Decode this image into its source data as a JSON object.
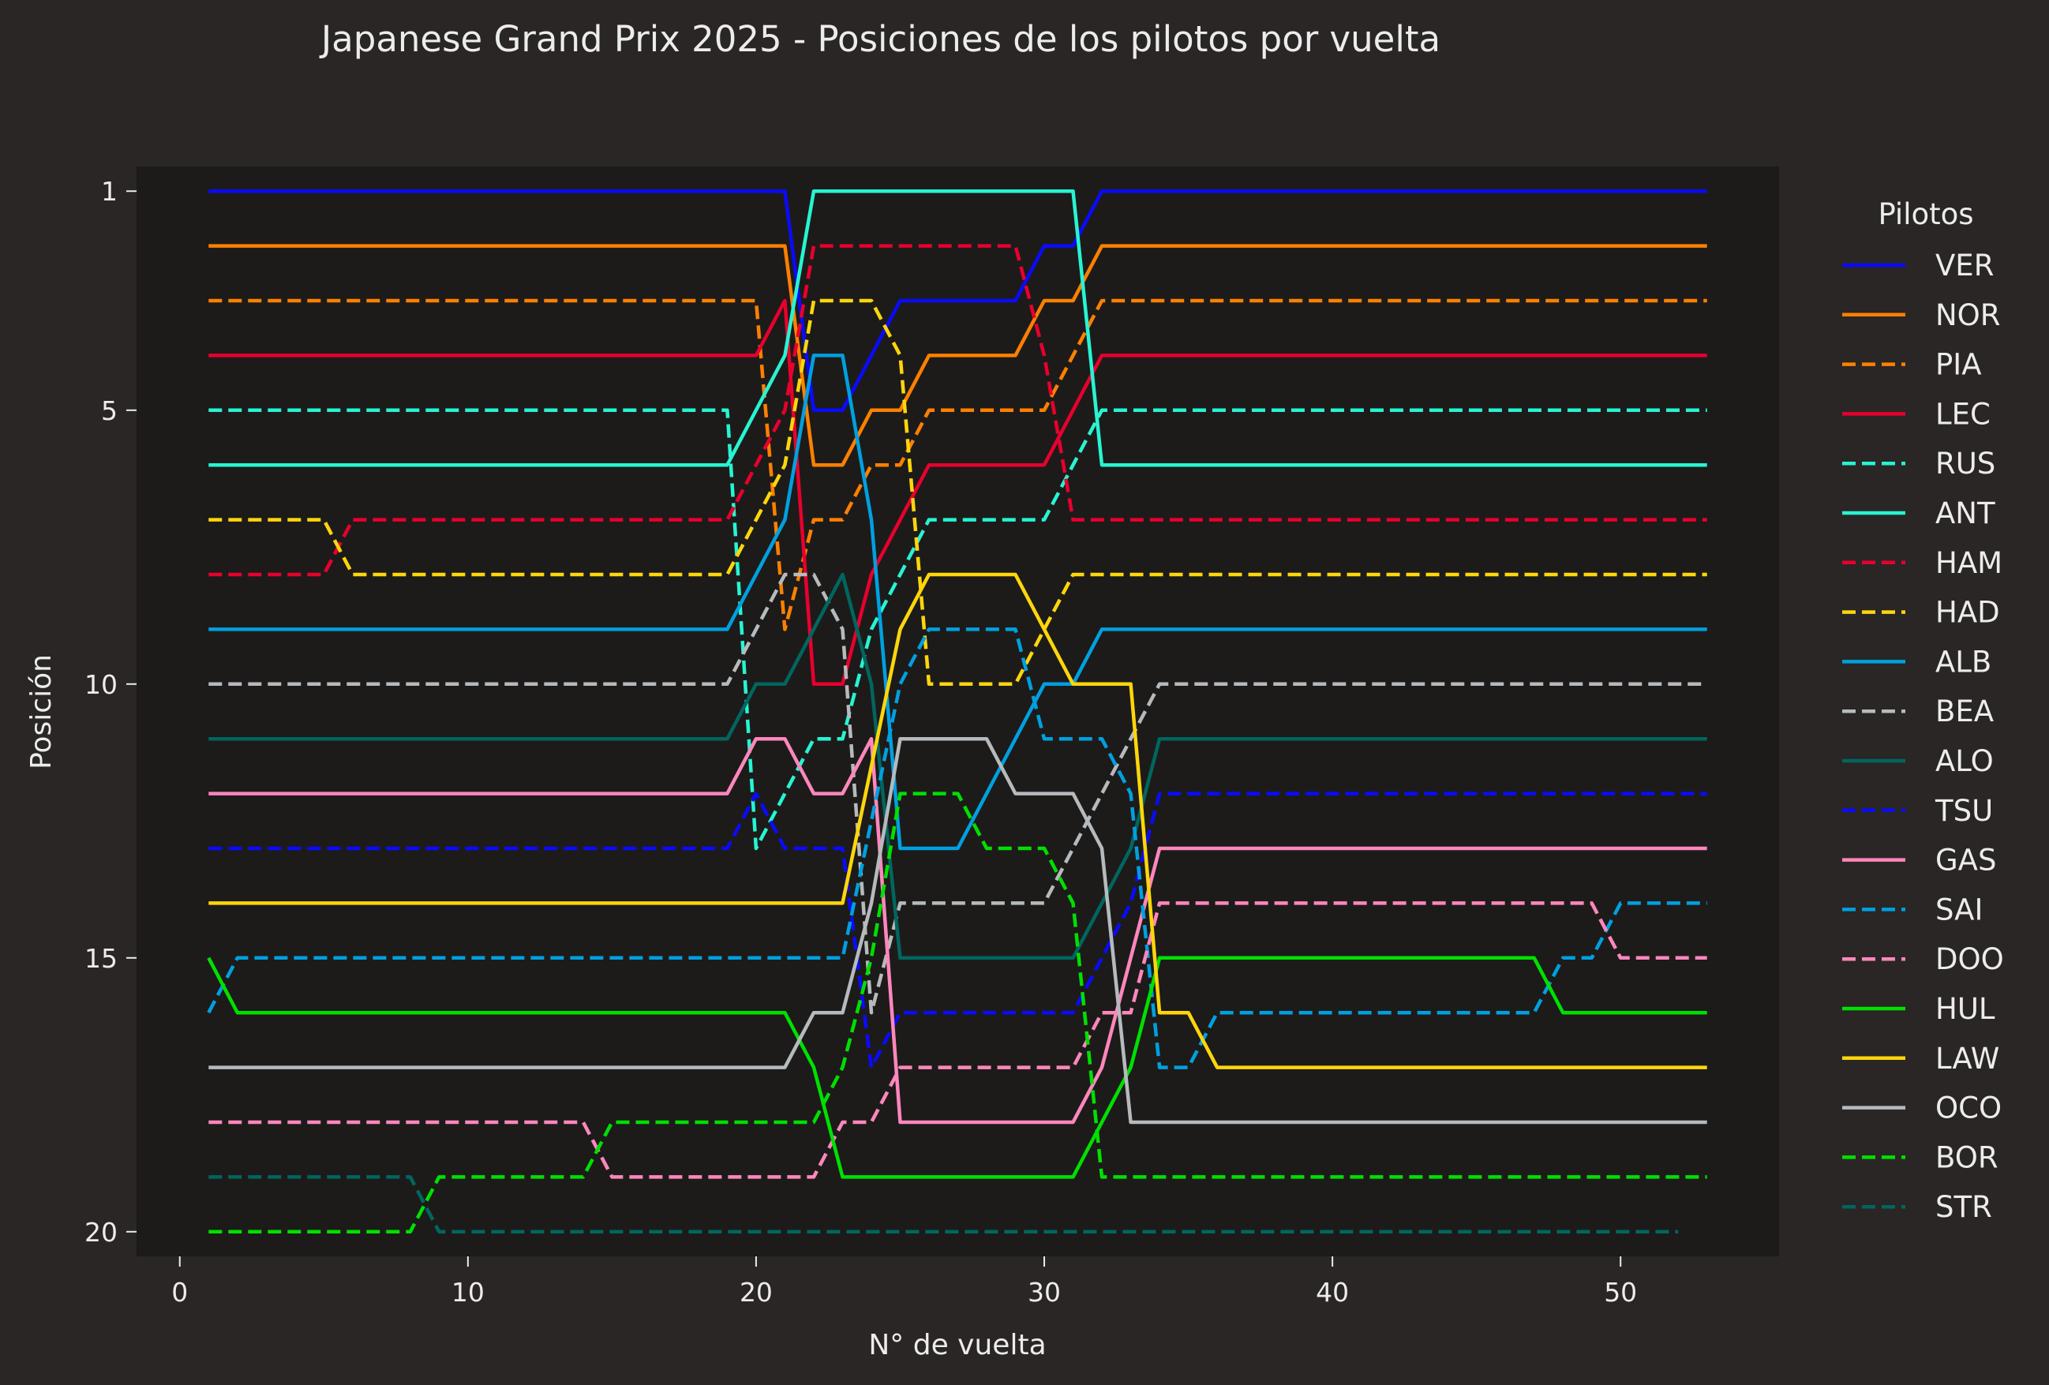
{
  "chart_data": {
    "type": "line",
    "title": "Japanese Grand Prix 2025 - Posiciones de los pilotos por vuelta",
    "xlabel": "N° de vuelta",
    "ylabel": "Posición",
    "xlim": [
      -1.5,
      55.5
    ],
    "ylim": [
      20.45,
      0.55
    ],
    "x_ticks": [
      0,
      10,
      20,
      30,
      40,
      50
    ],
    "y_ticks": [
      1,
      5,
      10,
      15,
      20
    ],
    "y_inverted": true,
    "grid": false,
    "legend": {
      "title": "Pilotos",
      "placement": "outside-right"
    },
    "series": [
      {
        "name": "VER",
        "color": "#0a0aff",
        "dash": "solid",
        "points": [
          [
            1,
            1
          ],
          [
            21,
            1
          ],
          [
            22,
            5
          ],
          [
            23,
            5
          ],
          [
            25,
            3
          ],
          [
            29,
            3
          ],
          [
            30,
            2
          ],
          [
            31,
            2
          ],
          [
            32,
            1
          ],
          [
            53,
            1
          ]
        ]
      },
      {
        "name": "NOR",
        "color": "#ff8000",
        "dash": "solid",
        "points": [
          [
            1,
            2
          ],
          [
            21,
            2
          ],
          [
            22,
            6
          ],
          [
            23,
            6
          ],
          [
            24,
            5
          ],
          [
            25,
            5
          ],
          [
            26,
            4
          ],
          [
            29,
            4
          ],
          [
            30,
            3
          ],
          [
            31,
            3
          ],
          [
            32,
            2
          ],
          [
            53,
            2
          ]
        ]
      },
      {
        "name": "PIA",
        "color": "#ff8000",
        "dash": "dashed",
        "points": [
          [
            1,
            3
          ],
          [
            20,
            3
          ],
          [
            21,
            9
          ],
          [
            22,
            7
          ],
          [
            23,
            7
          ],
          [
            24,
            6
          ],
          [
            25,
            6
          ],
          [
            26,
            5
          ],
          [
            30,
            5
          ],
          [
            31,
            4
          ],
          [
            32,
            3
          ],
          [
            53,
            3
          ]
        ]
      },
      {
        "name": "LEC",
        "color": "#e8002d",
        "dash": "solid",
        "points": [
          [
            1,
            4
          ],
          [
            20,
            4
          ],
          [
            21,
            3
          ],
          [
            22,
            10
          ],
          [
            23,
            10
          ],
          [
            24,
            8
          ],
          [
            25,
            7
          ],
          [
            26,
            6
          ],
          [
            30,
            6
          ],
          [
            31,
            5
          ],
          [
            32,
            4
          ],
          [
            53,
            4
          ]
        ]
      },
      {
        "name": "RUS",
        "color": "#27f4d2",
        "dash": "dashed",
        "points": [
          [
            1,
            5
          ],
          [
            19,
            5
          ],
          [
            20,
            13
          ],
          [
            21,
            12
          ],
          [
            22,
            11
          ],
          [
            23,
            11
          ],
          [
            24,
            9
          ],
          [
            25,
            8
          ],
          [
            26,
            7
          ],
          [
            30,
            7
          ],
          [
            31,
            6
          ],
          [
            32,
            5
          ],
          [
            53,
            5
          ]
        ]
      },
      {
        "name": "ANT",
        "color": "#27f4d2",
        "dash": "solid",
        "points": [
          [
            1,
            6
          ],
          [
            19,
            6
          ],
          [
            21,
            4
          ],
          [
            22,
            1
          ],
          [
            31,
            1
          ],
          [
            32,
            6
          ],
          [
            53,
            6
          ]
        ]
      },
      {
        "name": "HAM",
        "color": "#e8002d",
        "dash": "dashed",
        "points": [
          [
            1,
            8
          ],
          [
            5,
            8
          ],
          [
            6,
            7
          ],
          [
            19,
            7
          ],
          [
            21,
            5
          ],
          [
            22,
            2
          ],
          [
            29,
            2
          ],
          [
            30,
            4
          ],
          [
            31,
            7
          ],
          [
            53,
            7
          ]
        ]
      },
      {
        "name": "HAD",
        "color": "#ffd60a",
        "dash": "dashed",
        "points": [
          [
            1,
            7
          ],
          [
            5,
            7
          ],
          [
            6,
            8
          ],
          [
            19,
            8
          ],
          [
            21,
            6
          ],
          [
            22,
            3
          ],
          [
            24,
            3
          ],
          [
            25,
            4
          ],
          [
            26,
            10
          ],
          [
            29,
            10
          ],
          [
            30,
            9
          ],
          [
            31,
            8
          ],
          [
            53,
            8
          ]
        ]
      },
      {
        "name": "ALB",
        "color": "#00a0e0",
        "dash": "solid",
        "points": [
          [
            1,
            9
          ],
          [
            19,
            9
          ],
          [
            21,
            7
          ],
          [
            22,
            4
          ],
          [
            23,
            4
          ],
          [
            24,
            7
          ],
          [
            25,
            13
          ],
          [
            27,
            13
          ],
          [
            30,
            10
          ],
          [
            31,
            10
          ],
          [
            32,
            9
          ],
          [
            53,
            9
          ]
        ]
      },
      {
        "name": "BEA",
        "color": "#b6babd",
        "dash": "dashed",
        "points": [
          [
            1,
            10
          ],
          [
            19,
            10
          ],
          [
            21,
            8
          ],
          [
            22,
            8
          ],
          [
            23,
            9
          ],
          [
            24,
            16
          ],
          [
            25,
            14
          ],
          [
            30,
            14
          ],
          [
            34,
            10
          ],
          [
            53,
            10
          ]
        ]
      },
      {
        "name": "ALO",
        "color": "#00665f",
        "dash": "solid",
        "points": [
          [
            1,
            11
          ],
          [
            19,
            11
          ],
          [
            20,
            10
          ],
          [
            21,
            10
          ],
          [
            23,
            8
          ],
          [
            24,
            10
          ],
          [
            25,
            15
          ],
          [
            31,
            15
          ],
          [
            33,
            13
          ],
          [
            34,
            11
          ],
          [
            53,
            11
          ]
        ]
      },
      {
        "name": "TSU",
        "color": "#0a0aff",
        "dash": "dashed",
        "points": [
          [
            1,
            13
          ],
          [
            19,
            13
          ],
          [
            20,
            12
          ],
          [
            21,
            13
          ],
          [
            23,
            13
          ],
          [
            24,
            17
          ],
          [
            25,
            16
          ],
          [
            31,
            16
          ],
          [
            33,
            14
          ],
          [
            34,
            12
          ],
          [
            53,
            12
          ]
        ]
      },
      {
        "name": "GAS",
        "color": "#ff87bc",
        "dash": "solid",
        "points": [
          [
            1,
            12
          ],
          [
            19,
            12
          ],
          [
            20,
            11
          ],
          [
            21,
            11
          ],
          [
            22,
            12
          ],
          [
            23,
            12
          ],
          [
            24,
            11
          ],
          [
            25,
            18
          ],
          [
            31,
            18
          ],
          [
            32,
            17
          ],
          [
            34,
            13
          ],
          [
            53,
            13
          ]
        ]
      },
      {
        "name": "SAI",
        "color": "#00a0e0",
        "dash": "dashed",
        "points": [
          [
            1,
            16
          ],
          [
            2,
            15
          ],
          [
            23,
            15
          ],
          [
            25,
            10
          ],
          [
            26,
            9
          ],
          [
            29,
            9
          ],
          [
            30,
            11
          ],
          [
            32,
            11
          ],
          [
            33,
            12
          ],
          [
            34,
            17
          ],
          [
            35,
            17
          ],
          [
            36,
            16
          ],
          [
            47,
            16
          ],
          [
            48,
            15
          ],
          [
            49,
            15
          ],
          [
            50,
            14
          ],
          [
            53,
            14
          ]
        ]
      },
      {
        "name": "DOO",
        "color": "#ff87bc",
        "dash": "dashed",
        "points": [
          [
            1,
            18
          ],
          [
            14,
            18
          ],
          [
            15,
            19
          ],
          [
            22,
            19
          ],
          [
            23,
            18
          ],
          [
            24,
            18
          ],
          [
            25,
            17
          ],
          [
            31,
            17
          ],
          [
            32,
            16
          ],
          [
            33,
            16
          ],
          [
            34,
            14
          ],
          [
            49,
            14
          ],
          [
            50,
            15
          ],
          [
            53,
            15
          ]
        ]
      },
      {
        "name": "HUL",
        "color": "#00e000",
        "dash": "solid",
        "points": [
          [
            1,
            15
          ],
          [
            2,
            16
          ],
          [
            21,
            16
          ],
          [
            22,
            17
          ],
          [
            23,
            19
          ],
          [
            31,
            19
          ],
          [
            33,
            17
          ],
          [
            34,
            15
          ],
          [
            47,
            15
          ],
          [
            48,
            16
          ],
          [
            53,
            16
          ]
        ]
      },
      {
        "name": "LAW",
        "color": "#ffd60a",
        "dash": "solid",
        "points": [
          [
            1,
            14
          ],
          [
            23,
            14
          ],
          [
            25,
            9
          ],
          [
            26,
            8
          ],
          [
            29,
            8
          ],
          [
            31,
            10
          ],
          [
            32,
            10
          ],
          [
            33,
            10
          ],
          [
            34,
            16
          ],
          [
            35,
            16
          ],
          [
            36,
            17
          ],
          [
            53,
            17
          ]
        ]
      },
      {
        "name": "OCO",
        "color": "#b6babd",
        "dash": "solid",
        "points": [
          [
            1,
            17
          ],
          [
            21,
            17
          ],
          [
            22,
            16
          ],
          [
            23,
            16
          ],
          [
            24,
            14
          ],
          [
            25,
            11
          ],
          [
            28,
            11
          ],
          [
            29,
            12
          ],
          [
            31,
            12
          ],
          [
            32,
            13
          ],
          [
            33,
            18
          ],
          [
            53,
            18
          ]
        ]
      },
      {
        "name": "BOR",
        "color": "#00e000",
        "dash": "dashed",
        "points": [
          [
            1,
            20
          ],
          [
            8,
            20
          ],
          [
            9,
            19
          ],
          [
            14,
            19
          ],
          [
            15,
            18
          ],
          [
            21,
            18
          ],
          [
            22,
            18
          ],
          [
            23,
            17
          ],
          [
            24,
            15
          ],
          [
            25,
            12
          ],
          [
            27,
            12
          ],
          [
            28,
            13
          ],
          [
            30,
            13
          ],
          [
            31,
            14
          ],
          [
            32,
            19
          ],
          [
            53,
            19
          ]
        ]
      },
      {
        "name": "STR",
        "color": "#00665f",
        "dash": "dashed",
        "points": [
          [
            1,
            19
          ],
          [
            8,
            19
          ],
          [
            9,
            20
          ],
          [
            52,
            20
          ]
        ]
      }
    ]
  }
}
